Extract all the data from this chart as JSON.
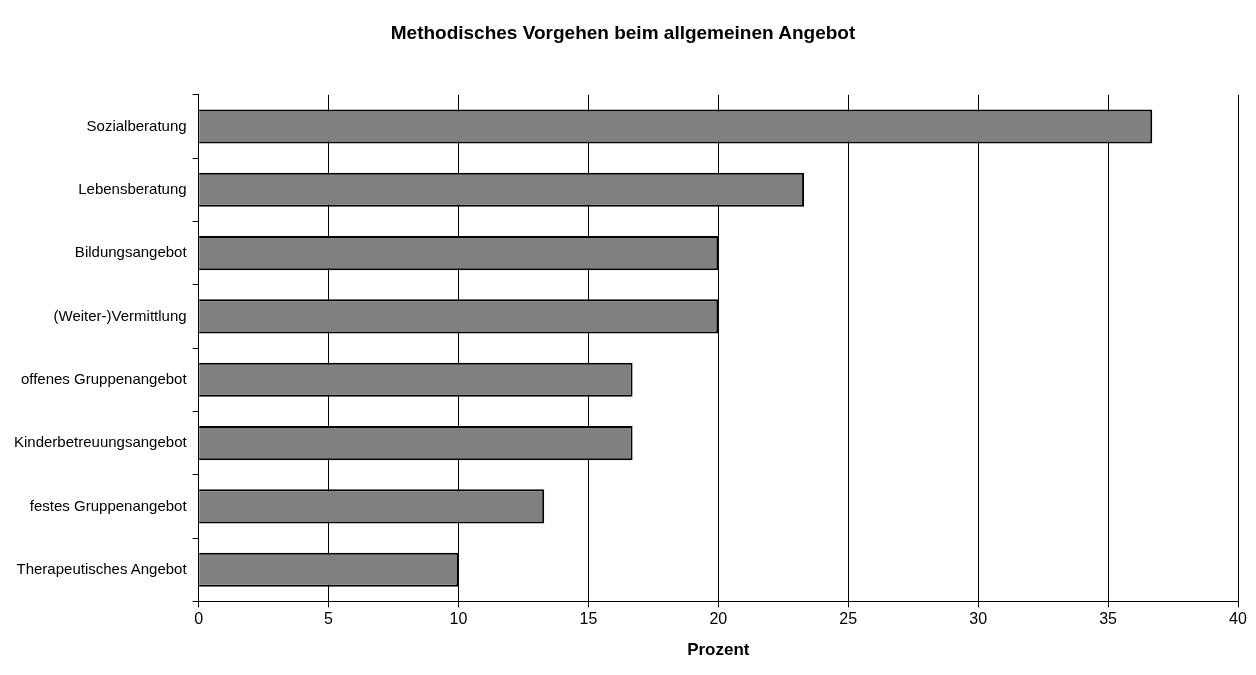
{
  "chart_data": {
    "type": "bar",
    "orientation": "horizontal",
    "title": "Methodisches Vorgehen beim allgemeinen Angebot",
    "xlabel": "Prozent",
    "categories": [
      "Sozialberatung",
      "Lebensberatung",
      "Bildungsangebot",
      "(Weiter-)Vermittlung",
      "offenes Gruppenangebot",
      "Kinderbetreuungsangebot",
      "festes Gruppenangebot",
      "Therapeutisches Angebot"
    ],
    "values": [
      36.7,
      23.3,
      20,
      20,
      16.7,
      16.7,
      13.3,
      10
    ],
    "color": "#808080",
    "xlim": [
      0,
      40
    ],
    "xticks": [
      0,
      5,
      10,
      15,
      20,
      25,
      30,
      35,
      40
    ],
    "grid": "x",
    "legend": false
  }
}
